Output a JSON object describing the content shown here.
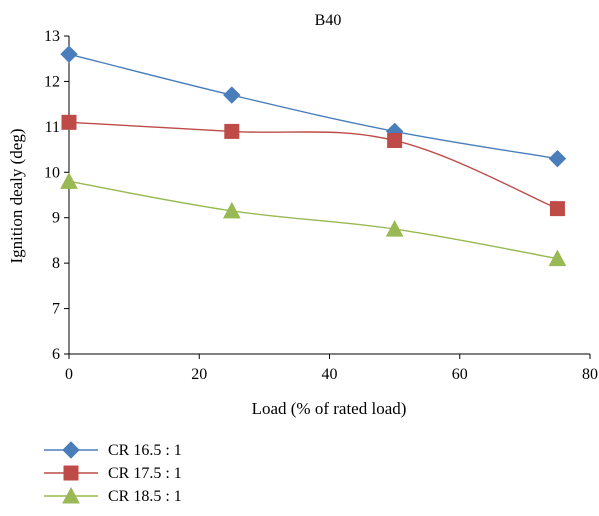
{
  "chart_data": {
    "type": "line",
    "title": "B40",
    "xlabel": "Load (% of rated load)",
    "ylabel": "Ignition dealy (deg)",
    "xlim": [
      0,
      80
    ],
    "ylim": [
      6,
      13
    ],
    "xticks": [
      "0",
      "20",
      "40",
      "60",
      "80"
    ],
    "yticks": [
      "6",
      "7",
      "8",
      "9",
      "10",
      "11",
      "12",
      "13"
    ],
    "grid": false,
    "legend_position": "bottom-left",
    "x": [
      0,
      25,
      50,
      75
    ],
    "series": [
      {
        "name": "CR 16.5 : 1",
        "values": [
          12.6,
          11.7,
          10.9,
          10.3
        ],
        "color": "#4a7ebb",
        "marker": "diamond"
      },
      {
        "name": "CR 17.5 : 1",
        "values": [
          11.1,
          10.9,
          10.7,
          9.2
        ],
        "color": "#be4b48",
        "marker": "square"
      },
      {
        "name": "CR 18.5 : 1",
        "values": [
          9.8,
          9.15,
          8.75,
          8.1
        ],
        "color": "#98b954",
        "marker": "triangle"
      }
    ]
  }
}
